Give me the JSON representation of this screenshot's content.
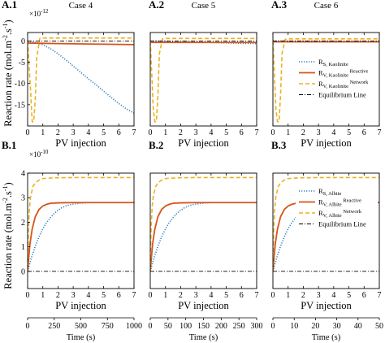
{
  "figure": {
    "xlabel": "PV injection",
    "ylabel_prefix": "Reaction rate (mol.m",
    "ylabel_sup1": "-2",
    "ylabel_mid": ".s",
    "ylabel_sup2": "-1",
    "ylabel_suffix": ")",
    "time_label": "Time (s)"
  },
  "chart_data": [
    {
      "id": "A1",
      "label": "A.1",
      "title": "Case 4",
      "type": "line",
      "xlim": [
        0,
        7
      ],
      "ylim": [
        -20,
        2
      ],
      "xticks": [
        "0",
        "1",
        "2",
        "3",
        "4",
        "5",
        "6",
        "7"
      ],
      "yticks": [
        {
          "v": 0,
          "t": "0"
        },
        {
          "v": -5,
          "t": "-5"
        },
        {
          "v": -10,
          "t": "-10"
        },
        {
          "v": -15,
          "t": "-15"
        }
      ],
      "multiplier": {
        "base": "×10",
        "exp": "-12"
      },
      "legend": null,
      "series": [
        {
          "kind": "rs",
          "x": [
            0,
            0.3,
            0.7,
            1,
            1.5,
            2,
            2.5,
            3,
            3.5,
            4,
            4.5,
            5,
            5.5,
            6,
            6.5,
            7
          ],
          "y": [
            0,
            -0.15,
            -0.5,
            -0.9,
            -1.8,
            -3,
            -4.4,
            -5.9,
            -7.4,
            -8.9,
            -10.3,
            -11.8,
            -13.3,
            -14.7,
            -16,
            -17
          ]
        },
        {
          "kind": "rv",
          "x": [
            0,
            0.02,
            0.1,
            0.3,
            1,
            2,
            3,
            4,
            5,
            6,
            7
          ],
          "y": [
            0,
            -0.4,
            -0.5,
            -0.5,
            -0.55,
            -0.6,
            -0.65,
            -0.7,
            -0.75,
            -0.8,
            -0.85
          ]
        },
        {
          "kind": "rvn",
          "x": [
            0,
            0.1,
            0.2,
            0.3,
            0.4,
            0.5,
            0.6,
            0.8,
            1,
            7
          ],
          "y": [
            0,
            -6,
            -12,
            -19,
            -19,
            -14,
            -4,
            0.6,
            0.7,
            0.7
          ]
        },
        {
          "kind": "eq",
          "x": [
            0,
            7
          ],
          "y": [
            0,
            0
          ]
        }
      ]
    },
    {
      "id": "A2",
      "label": "A.2",
      "title": "Case 5",
      "type": "line",
      "xlim": [
        0,
        7
      ],
      "ylim": [
        -20,
        2
      ],
      "xticks": [
        "0",
        "1",
        "2",
        "3",
        "4",
        "5",
        "6",
        "7"
      ],
      "yticks": [],
      "multiplier": null,
      "legend": null,
      "series": [
        {
          "kind": "rs",
          "x": [
            0,
            1,
            2,
            3,
            4,
            5,
            6,
            7
          ],
          "y": [
            0,
            -0.05,
            -0.15,
            -0.25,
            -0.35,
            -0.45,
            -0.55,
            -0.6
          ]
        },
        {
          "kind": "rv",
          "x": [
            0,
            0.05,
            0.2,
            1,
            3,
            5,
            7
          ],
          "y": [
            0,
            -0.3,
            -0.35,
            -0.35,
            -0.35,
            -0.35,
            -0.35
          ]
        },
        {
          "kind": "rvn",
          "x": [
            0,
            0.1,
            0.2,
            0.3,
            0.4,
            0.5,
            0.6,
            0.8,
            1,
            7
          ],
          "y": [
            0,
            -8,
            -16,
            -19,
            -19,
            -13,
            -3,
            0.5,
            0.6,
            0.6
          ]
        },
        {
          "kind": "eq",
          "x": [
            0,
            7
          ],
          "y": [
            0,
            0
          ]
        }
      ]
    },
    {
      "id": "A3",
      "label": "A.3",
      "title": "Case 6",
      "type": "line",
      "xlim": [
        0,
        7
      ],
      "ylim": [
        -20,
        2
      ],
      "xticks": [
        "0",
        "1",
        "2",
        "3",
        "4",
        "5",
        "6",
        "7"
      ],
      "yticks": [],
      "multiplier": null,
      "legend": {
        "entries": [
          {
            "kind": "rs",
            "label": "R",
            "sub": "S, Kaolinite",
            "extra": ""
          },
          {
            "kind": "rv",
            "label": "R",
            "sub": "V, Kaolinite",
            "extra": " Reactive"
          },
          {
            "kind": "rvn",
            "label": "R",
            "sub": "V, Kaolinite",
            "extra": " Network"
          },
          {
            "kind": "eq",
            "label": "Equilibrium Line",
            "sub": "",
            "extra": ""
          }
        ]
      },
      "series": [
        {
          "kind": "rs",
          "x": [
            0,
            7
          ],
          "y": [
            0,
            -0.05
          ]
        },
        {
          "kind": "rv",
          "x": [
            0,
            0.05,
            0.2,
            7
          ],
          "y": [
            0,
            -0.2,
            -0.2,
            -0.2
          ]
        },
        {
          "kind": "rvn",
          "x": [
            0,
            0.1,
            0.2,
            0.3,
            0.4,
            0.5,
            0.6,
            0.8,
            1,
            7
          ],
          "y": [
            0,
            -8,
            -16,
            -19,
            -19,
            -13,
            -3,
            0.4,
            0.5,
            0.5
          ]
        },
        {
          "kind": "eq",
          "x": [
            0,
            7
          ],
          "y": [
            0,
            0
          ]
        }
      ]
    },
    {
      "id": "B1",
      "label": "B.1",
      "title": "",
      "type": "line",
      "xlim": [
        0,
        7
      ],
      "ylim": [
        -0.7,
        4
      ],
      "xticks": [
        "0",
        "1",
        "2",
        "3",
        "4",
        "5",
        "6",
        "7"
      ],
      "yticks": [
        {
          "v": 0,
          "t": "0"
        },
        {
          "v": 1,
          "t": "1"
        },
        {
          "v": 2,
          "t": "2"
        },
        {
          "v": 3,
          "t": "3"
        },
        {
          "v": 4,
          "t": "4"
        }
      ],
      "multiplier": {
        "base": "×10",
        "exp": "-10"
      },
      "time_axis": {
        "max": 1000,
        "ticks": [
          "0",
          "250",
          "500",
          "750",
          "1000"
        ]
      },
      "legend": null,
      "series": [
        {
          "kind": "rs",
          "x": [
            0,
            0.25,
            0.5,
            0.75,
            1,
            1.25,
            1.5,
            1.75,
            2,
            2.25,
            2.5,
            2.75,
            3,
            3.5,
            4,
            5,
            6,
            7
          ],
          "y": [
            0,
            0.55,
            1.02,
            1.41,
            1.73,
            1.99,
            2.19,
            2.36,
            2.49,
            2.59,
            2.66,
            2.71,
            2.74,
            2.78,
            2.8,
            2.8,
            2.8,
            2.8
          ]
        },
        {
          "kind": "rv",
          "x": [
            0,
            0.15,
            0.3,
            0.5,
            0.75,
            1,
            1.25,
            1.5,
            2,
            3,
            4,
            7
          ],
          "y": [
            0,
            1.1,
            1.72,
            2.22,
            2.52,
            2.66,
            2.73,
            2.77,
            2.79,
            2.8,
            2.8,
            2.8
          ]
        },
        {
          "kind": "rvn",
          "x": [
            0,
            0.05,
            0.12,
            0.2,
            0.35,
            0.5,
            0.75,
            1,
            1.5,
            2,
            3,
            7
          ],
          "y": [
            0,
            1.6,
            2.6,
            3.05,
            3.45,
            3.6,
            3.72,
            3.78,
            3.8,
            3.81,
            3.82,
            3.82
          ]
        },
        {
          "kind": "eq",
          "x": [
            0,
            7
          ],
          "y": [
            0,
            0
          ]
        }
      ]
    },
    {
      "id": "B2",
      "label": "B.2",
      "title": "",
      "type": "line",
      "xlim": [
        0,
        7
      ],
      "ylim": [
        -0.7,
        4
      ],
      "xticks": [
        "0",
        "1",
        "2",
        "3",
        "4",
        "5",
        "6",
        "7"
      ],
      "yticks": [],
      "multiplier": null,
      "time_axis": {
        "max": 300,
        "ticks": [
          "0",
          "50",
          "100",
          "150",
          "200",
          "250",
          "300"
        ]
      },
      "legend": null,
      "series": [
        {
          "kind": "rs",
          "x": [
            0,
            0.25,
            0.5,
            0.75,
            1,
            1.25,
            1.5,
            1.75,
            2,
            2.25,
            2.5,
            2.75,
            3,
            3.5,
            4,
            5,
            6,
            7
          ],
          "y": [
            0,
            0.55,
            1.02,
            1.41,
            1.73,
            1.99,
            2.19,
            2.36,
            2.49,
            2.59,
            2.66,
            2.71,
            2.74,
            2.78,
            2.8,
            2.8,
            2.8,
            2.8
          ]
        },
        {
          "kind": "rv",
          "x": [
            0,
            0.15,
            0.3,
            0.5,
            0.75,
            1,
            1.25,
            1.5,
            2,
            3,
            4,
            7
          ],
          "y": [
            0,
            1.1,
            1.72,
            2.22,
            2.52,
            2.66,
            2.73,
            2.77,
            2.79,
            2.8,
            2.8,
            2.8
          ]
        },
        {
          "kind": "rvn",
          "x": [
            0,
            0.05,
            0.12,
            0.2,
            0.35,
            0.5,
            0.75,
            1,
            1.5,
            2,
            3,
            7
          ],
          "y": [
            0,
            1.6,
            2.6,
            3.05,
            3.45,
            3.6,
            3.72,
            3.78,
            3.8,
            3.81,
            3.82,
            3.82
          ]
        },
        {
          "kind": "eq",
          "x": [
            0,
            7
          ],
          "y": [
            0,
            0
          ]
        }
      ]
    },
    {
      "id": "B3",
      "label": "B.3",
      "title": "",
      "type": "line",
      "xlim": [
        0,
        7
      ],
      "ylim": [
        -0.7,
        4
      ],
      "xticks": [
        "0",
        "1",
        "2",
        "3",
        "4",
        "5",
        "6",
        "7"
      ],
      "yticks": [],
      "multiplier": null,
      "time_axis": {
        "max": 50,
        "ticks": [
          "0",
          "10",
          "20",
          "30",
          "40",
          "50"
        ]
      },
      "legend": {
        "entries": [
          {
            "kind": "rs",
            "label": "R",
            "sub": "S, Albite",
            "extra": ""
          },
          {
            "kind": "rv",
            "label": "R",
            "sub": "V, Albite",
            "extra": " Reactive"
          },
          {
            "kind": "rvn",
            "label": "R",
            "sub": "V, Albite",
            "extra": " Network"
          },
          {
            "kind": "eq",
            "label": "Equilibrium Line",
            "sub": "",
            "extra": ""
          }
        ]
      },
      "series": [
        {
          "kind": "rs",
          "x": [
            0,
            0.25,
            0.5,
            0.75,
            1,
            1.25,
            1.5,
            1.75,
            2,
            2.25,
            2.5,
            2.75,
            3,
            3.5,
            4,
            5,
            6,
            7
          ],
          "y": [
            0,
            0.55,
            1.02,
            1.41,
            1.73,
            1.99,
            2.19,
            2.36,
            2.49,
            2.59,
            2.66,
            2.71,
            2.74,
            2.78,
            2.8,
            2.8,
            2.8,
            2.8
          ]
        },
        {
          "kind": "rv",
          "x": [
            0,
            0.15,
            0.3,
            0.5,
            0.75,
            1,
            1.25,
            1.5,
            2,
            3,
            4,
            7
          ],
          "y": [
            0,
            1.1,
            1.72,
            2.22,
            2.52,
            2.66,
            2.73,
            2.77,
            2.79,
            2.8,
            2.8,
            2.8
          ]
        },
        {
          "kind": "rvn",
          "x": [
            0,
            0.05,
            0.12,
            0.2,
            0.35,
            0.5,
            0.75,
            1,
            1.5,
            2,
            3,
            7
          ],
          "y": [
            0,
            1.6,
            2.6,
            3.05,
            3.45,
            3.6,
            3.72,
            3.78,
            3.8,
            3.81,
            3.82,
            3.82
          ]
        },
        {
          "kind": "eq",
          "x": [
            0,
            7
          ],
          "y": [
            0,
            0
          ]
        }
      ]
    }
  ],
  "styles": {
    "rs": {
      "color": "#2f7fc1",
      "dash": "1.2,1.8",
      "width": 1.6
    },
    "rv": {
      "color": "#d95319",
      "dash": "",
      "width": 1.8
    },
    "rvn": {
      "color": "#edb120",
      "dash": "5,3",
      "width": 1.6
    },
    "eq": {
      "color": "#000000",
      "dash": "5,2,1,2",
      "width": 0.9
    }
  }
}
